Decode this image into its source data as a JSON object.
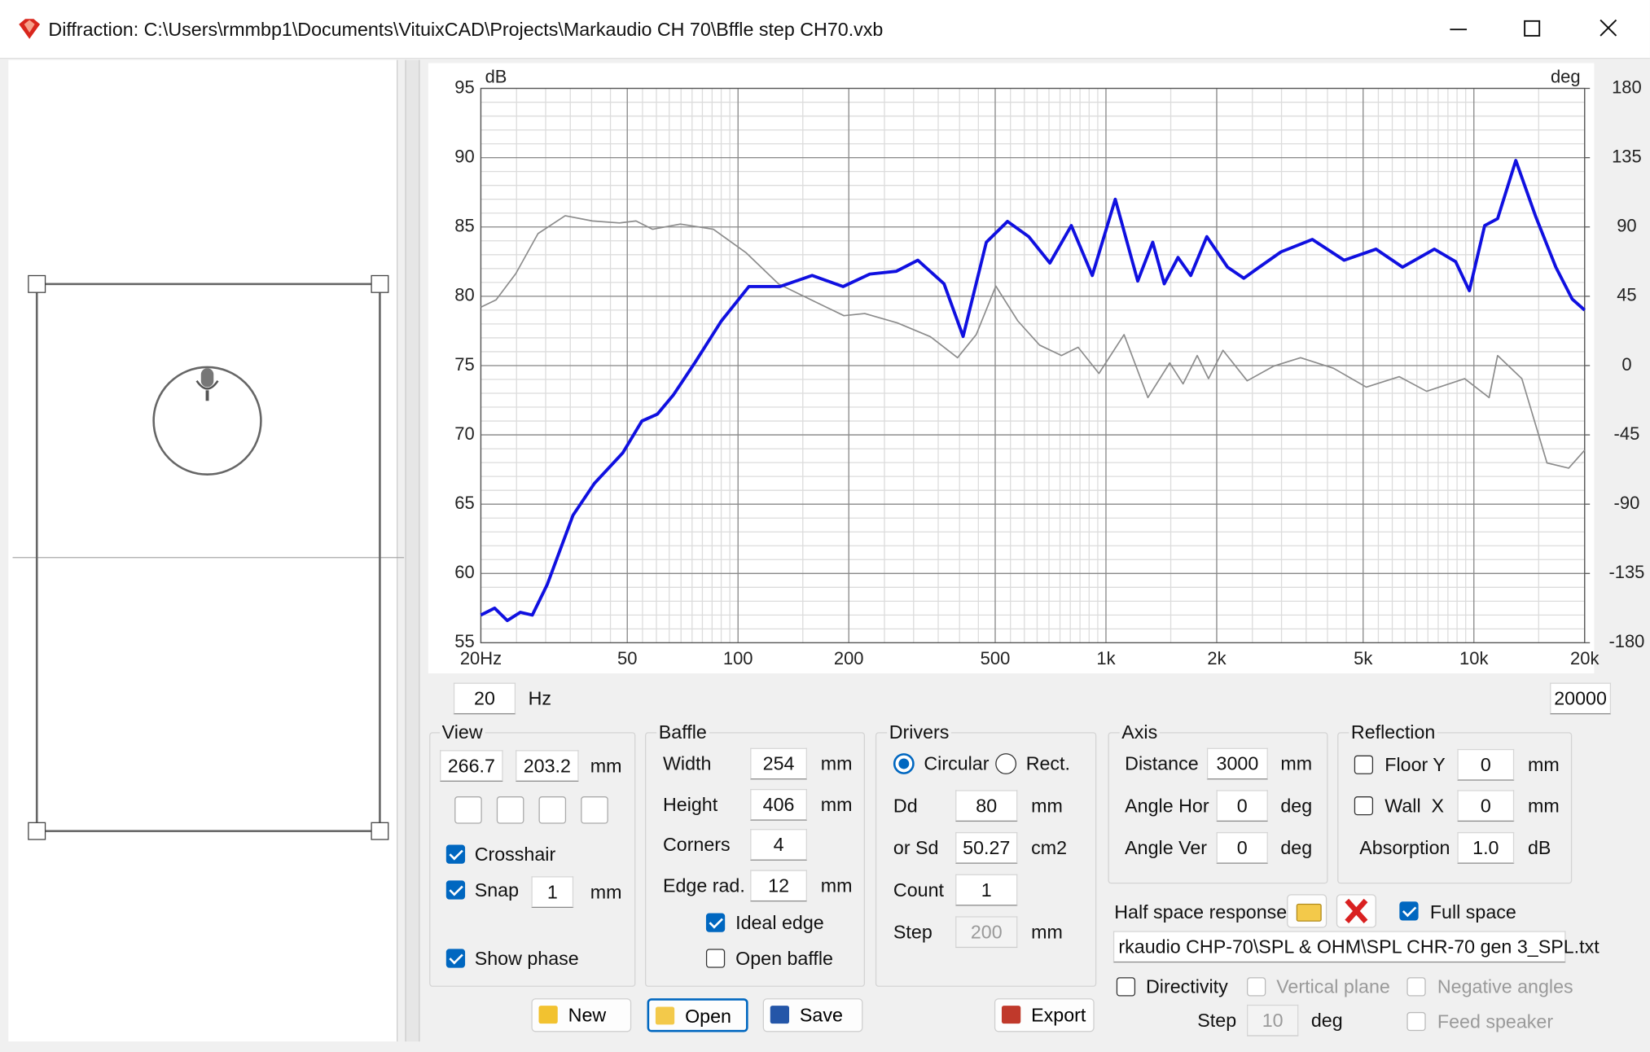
{
  "window": {
    "title": "Diffraction: C:\\Users\\rmmbp1\\Documents\\VituixCAD\\Projects\\Markaudio CH 70\\Bffle step CH70.vxb"
  },
  "chart_data": {
    "type": "line",
    "y_label": "dB",
    "y2_label": "deg",
    "log_x": true,
    "grid": true,
    "xlim": [
      20,
      20000
    ],
    "xticks": [
      {
        "value": 20,
        "label": "20Hz"
      },
      50,
      100,
      200,
      500,
      {
        "value": 1000,
        "label": "1k"
      },
      {
        "value": 2000,
        "label": "2k"
      },
      {
        "value": 5000,
        "label": "5k"
      },
      {
        "value": 10000,
        "label": "10k"
      },
      {
        "value": 20000,
        "label": "20k"
      }
    ],
    "ylim": [
      55,
      95
    ],
    "yticks": [
      55,
      60,
      65,
      70,
      75,
      80,
      85,
      90,
      95
    ],
    "y2lim": [
      -180,
      180
    ],
    "y2ticks": [
      -180,
      -135,
      -90,
      -45,
      0,
      45,
      90,
      135,
      180
    ],
    "series": [
      {
        "color": "#1010e0",
        "axis": "y",
        "x": [
          20,
          21.8,
          23.6,
          25.6,
          27.6,
          30.3,
          35.6,
          40.7,
          48.6,
          54.8,
          60.4,
          66.8,
          76.3,
          90,
          107,
          130,
          159,
          193,
          228,
          269,
          308,
          363,
          409,
          473,
          540,
          617,
          704,
          805,
          918,
          1060,
          1220,
          1340,
          1440,
          1570,
          1700,
          1880,
          2140,
          2370,
          2610,
          2990,
          3640,
          4440,
          5420,
          6400,
          7810,
          8920,
          9720,
          10700,
          11600,
          13000,
          14700,
          16700,
          18500,
          20000
        ],
        "values": [
          57.0,
          57.5,
          56.6,
          57.2,
          57.0,
          59.2,
          64.2,
          66.5,
          68.7,
          71.0,
          71.5,
          72.9,
          75.2,
          78.2,
          80.7,
          80.7,
          81.5,
          80.7,
          81.6,
          81.8,
          82.6,
          80.9,
          77.1,
          83.9,
          85.4,
          84.3,
          82.4,
          85.1,
          81.5,
          87.0,
          81.1,
          83.9,
          80.9,
          82.8,
          81.5,
          84.3,
          82.1,
          81.3,
          82.1,
          83.2,
          84.1,
          82.6,
          83.4,
          82.1,
          83.4,
          82.5,
          80.4,
          85.1,
          85.6,
          89.8,
          85.8,
          82.1,
          79.8,
          79.0
        ]
      },
      {
        "color": "#8c8c8c",
        "axis": "y2",
        "x": [
          20,
          22,
          24.9,
          28.6,
          33.9,
          40.2,
          47.6,
          52.8,
          58.6,
          69.7,
          85.7,
          105,
          129,
          158,
          194,
          221,
          271,
          333,
          395,
          444,
          502,
          576,
          660,
          757,
          840,
          957,
          1120,
          1300,
          1490,
          1620,
          1770,
          1900,
          2080,
          2420,
          2860,
          3380,
          4150,
          5100,
          6270,
          7440,
          9440,
          11000,
          11600,
          13500,
          15800,
          18100,
          20000
        ],
        "values": [
          37.9,
          42.7,
          59.8,
          85.7,
          97.3,
          93.9,
          92.6,
          93.9,
          88.5,
          91.9,
          88.5,
          73.4,
          52.9,
          42.7,
          32.4,
          33.8,
          27.7,
          18.8,
          5.1,
          20.1,
          51.6,
          29.0,
          13.3,
          6.5,
          11.9,
          -5.1,
          20.1,
          -20.8,
          1.7,
          -11.9,
          6.5,
          -8.5,
          9.9,
          -9.9,
          -0.3,
          5.1,
          -1.7,
          -14.0,
          -7.2,
          -16.7,
          -8.5,
          -20.8,
          6.5,
          -8.5,
          -63.2,
          -66.6,
          -55.0
        ]
      }
    ]
  },
  "range": {
    "min": "20",
    "unit": "Hz",
    "max": "20000"
  },
  "view": {
    "title": "View",
    "x": "266.7",
    "y": "203.2",
    "unit": "mm",
    "crosshair": {
      "label": "Crosshair",
      "checked": true
    },
    "snap": {
      "label": "Snap",
      "checked": true,
      "value": "1",
      "unit": "mm"
    },
    "show_phase": {
      "label": "Show phase",
      "checked": true
    }
  },
  "baffle": {
    "title": "Baffle",
    "fields": [
      {
        "label": "Width",
        "value": "254",
        "unit": "mm"
      },
      {
        "label": "Height",
        "value": "406",
        "unit": "mm"
      },
      {
        "label": "Corners",
        "value": "4"
      },
      {
        "label": "Edge rad.",
        "value": "12",
        "unit": "mm"
      }
    ],
    "ideal_edge": {
      "label": "Ideal edge",
      "checked": true
    },
    "open_baffle": {
      "label": "Open baffle",
      "checked": false
    }
  },
  "drivers": {
    "title": "Drivers",
    "circular": {
      "label": "Circular",
      "selected": true
    },
    "rect": {
      "label": "Rect.",
      "selected": false
    },
    "fields": [
      {
        "label": "Dd",
        "value": "80",
        "unit": "mm"
      },
      {
        "label": "or Sd",
        "value": "50.27",
        "unit": "cm2"
      },
      {
        "label": "Count",
        "value": "1"
      },
      {
        "label": "Step",
        "value": "200",
        "unit": "mm"
      }
    ]
  },
  "axis": {
    "title": "Axis",
    "fields": [
      {
        "label": "Distance",
        "value": "3000",
        "unit": "mm"
      },
      {
        "label": "Angle Hor",
        "value": "0",
        "unit": "deg"
      },
      {
        "label": "Angle Ver",
        "value": "0",
        "unit": "deg"
      }
    ]
  },
  "reflection": {
    "title": "Reflection",
    "floor": {
      "label": "Floor Y",
      "checked": false,
      "value": "0",
      "unit": "mm"
    },
    "wall": {
      "label": "Wall  X",
      "checked": false,
      "value": "0",
      "unit": "mm"
    },
    "absorption": {
      "label": "Absorption",
      "value": "1.0",
      "unit": "dB"
    }
  },
  "half_space": {
    "label": "Half space response",
    "full_space": {
      "label": "Full space",
      "checked": true
    },
    "file": "rkaudio CHP-70\\SPL & OHM\\SPL CHR-70 gen 3_SPL.txt"
  },
  "directivity": {
    "label": "Directivity",
    "checked": false,
    "vertical_plane": {
      "label": "Vertical plane",
      "checked": false
    },
    "negative_angles": {
      "label": "Negative angles",
      "checked": false
    },
    "feed_speaker": {
      "label": "Feed speaker",
      "checked": false
    },
    "step_label": "Step",
    "step": "10",
    "unit": "deg"
  },
  "buttons": {
    "new": "New",
    "open": "Open",
    "save": "Save",
    "export": "Export"
  }
}
